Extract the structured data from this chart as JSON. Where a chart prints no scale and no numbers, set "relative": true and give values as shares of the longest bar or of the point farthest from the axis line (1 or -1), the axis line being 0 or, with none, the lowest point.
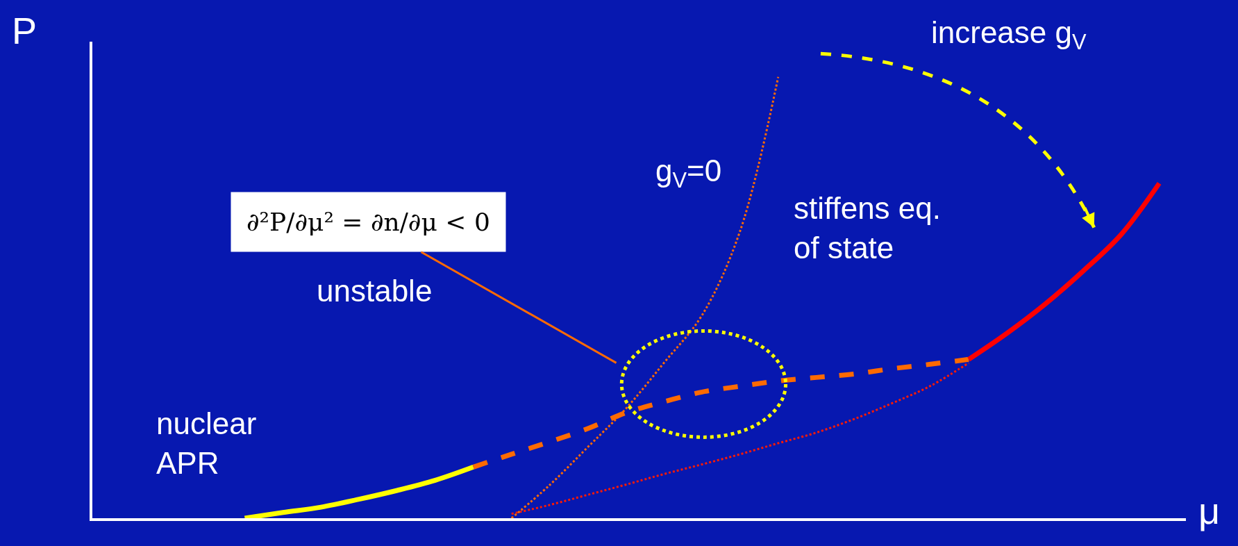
{
  "chart_data": {
    "type": "line",
    "relative": true,
    "xlabel": "μ",
    "ylabel": "P",
    "categories": [
      null,
      null,
      null,
      null,
      null,
      null,
      null,
      null,
      null,
      null,
      null,
      null,
      null,
      null,
      null,
      null,
      null,
      null,
      null,
      null,
      null,
      null,
      null,
      null,
      null,
      null,
      null,
      null,
      null
    ],
    "series": [
      {
        "color": "#ffff00",
        "line_style": "solid",
        "values": [
          null,
          null,
          null,
          null,
          0.0,
          0.013,
          0.025,
          0.043,
          0.063,
          0.086,
          0.116,
          null,
          null,
          null,
          null,
          null,
          null,
          null,
          null,
          null,
          null,
          null,
          null,
          null,
          null,
          null,
          null,
          null,
          null
        ]
      },
      {
        "color": "#ff6a00",
        "line_style": "dashed",
        "values": [
          null,
          null,
          null,
          null,
          null,
          null,
          null,
          null,
          null,
          null,
          0.116,
          0.145,
          0.173,
          0.203,
          0.239,
          0.264,
          0.286,
          0.299,
          0.311,
          0.319,
          0.327,
          0.339,
          0.349,
          0.36,
          null,
          null,
          null,
          null,
          null
        ]
      },
      {
        "color": "#ff0000",
        "line_style": "solid",
        "values": [
          null,
          null,
          null,
          null,
          null,
          null,
          null,
          null,
          null,
          null,
          null,
          null,
          null,
          null,
          null,
          null,
          null,
          null,
          null,
          null,
          null,
          null,
          null,
          0.36,
          0.419,
          0.485,
          0.56,
          0.643,
          0.759
        ]
      },
      {
        "color": "#ff1a00",
        "line_style": "dotted",
        "values": [
          null,
          null,
          null,
          null,
          null,
          null,
          null,
          null,
          null,
          null,
          null,
          0.01,
          0.03,
          0.053,
          0.076,
          0.1,
          0.122,
          0.145,
          0.17,
          0.194,
          0.225,
          0.261,
          0.3,
          0.352,
          null,
          null,
          null,
          null,
          null
        ]
      },
      {
        "color": "#ff6a00",
        "line_style": "dotted",
        "values": [
          null,
          null,
          null,
          null,
          null,
          null,
          null,
          null,
          null,
          null,
          null,
          0.0,
          0.075,
          0.161,
          0.248,
          0.352,
          0.46,
          0.651,
          1.0,
          null,
          null,
          null,
          null,
          null,
          null,
          null,
          null,
          null,
          null
        ]
      }
    ],
    "annotations": [
      "increase g$_{V}$",
      "g$_{V}$=0",
      "stiffens eq.\nof state",
      "unstable",
      "nuclear\nAPR",
      "∂²P/∂μ² = ∂n/∂μ < 0"
    ]
  }
}
